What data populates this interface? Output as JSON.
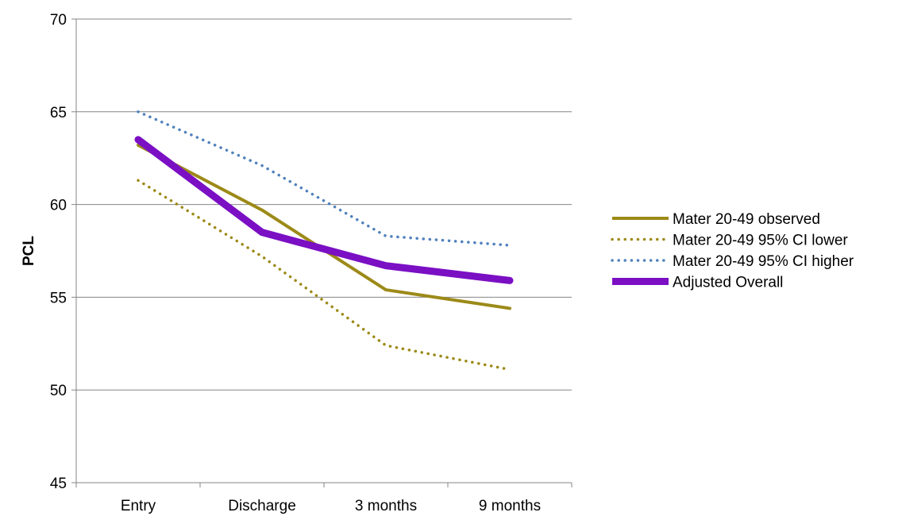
{
  "chart_data": {
    "type": "line",
    "title": "",
    "xlabel": "",
    "ylabel": "PCL",
    "categories": [
      "Entry",
      "Discharge",
      "3 months",
      "9 months"
    ],
    "ylim": [
      45,
      70
    ],
    "yticks": [
      45,
      50,
      55,
      60,
      65,
      70
    ],
    "grid": true,
    "legend_position": "right",
    "series": [
      {
        "name": "Mater 20-49 observed",
        "values": [
          63.2,
          59.7,
          55.4,
          54.4
        ],
        "color": "#9c8a18",
        "style": "solid"
      },
      {
        "name": "Mater 20-49 95% CI lower",
        "values": [
          61.3,
          57.2,
          52.4,
          51.1
        ],
        "color": "#9c8a18",
        "style": "dotted"
      },
      {
        "name": "Mater 20-49 95% CI higher",
        "values": [
          65.0,
          62.1,
          58.3,
          57.8
        ],
        "color": "#4f81bd",
        "style": "dotted"
      },
      {
        "name": "Adjusted Overall",
        "values": [
          63.5,
          58.5,
          56.7,
          55.9
        ],
        "color": "#7b0fc4",
        "style": "thick"
      }
    ]
  }
}
